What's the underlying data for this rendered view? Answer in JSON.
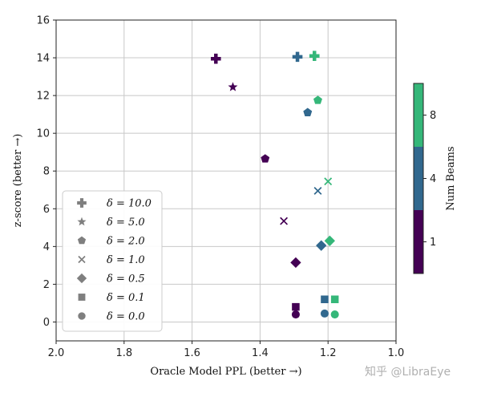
{
  "chart_data": {
    "type": "scatter",
    "xlabel": "Oracle Model PPL (better →)",
    "ylabel": "z-score (better →)",
    "xlim": [
      2.0,
      1.0
    ],
    "ylim": [
      -1,
      16
    ],
    "x_ticks": [
      "2.0",
      "1.8",
      "1.6",
      "1.4",
      "1.2",
      "1.0"
    ],
    "y_ticks": [
      "0",
      "2",
      "4",
      "6",
      "8",
      "10",
      "12",
      "14",
      "16"
    ],
    "grid": true,
    "legend_position": "lower-left",
    "legend": [
      {
        "marker": "plus",
        "label": "δ = 10.0"
      },
      {
        "marker": "star",
        "label": "δ = 5.0"
      },
      {
        "marker": "pentagon",
        "label": "δ = 2.0"
      },
      {
        "marker": "x",
        "label": "δ = 1.0"
      },
      {
        "marker": "diamond",
        "label": "δ = 0.5"
      },
      {
        "marker": "square",
        "label": "δ = 0.1"
      },
      {
        "marker": "circle",
        "label": "δ = 0.0"
      }
    ],
    "colorbar": {
      "label": "Num Beams",
      "ticks": [
        "1",
        "4",
        "8"
      ],
      "colors": {
        "1": "#440154",
        "4": "#31688e",
        "8": "#35b779"
      }
    },
    "points": [
      {
        "delta": 10.0,
        "marker": "plus",
        "beams": 1,
        "x": 1.53,
        "y": 13.95
      },
      {
        "delta": 10.0,
        "marker": "plus",
        "beams": 4,
        "x": 1.29,
        "y": 14.05
      },
      {
        "delta": 10.0,
        "marker": "plus",
        "beams": 8,
        "x": 1.24,
        "y": 14.1
      },
      {
        "delta": 5.0,
        "marker": "star",
        "beams": 1,
        "x": 1.48,
        "y": 12.45
      },
      {
        "delta": 2.0,
        "marker": "pentagon",
        "beams": 1,
        "x": 1.385,
        "y": 8.65
      },
      {
        "delta": 2.0,
        "marker": "pentagon",
        "beams": 4,
        "x": 1.26,
        "y": 11.1
      },
      {
        "delta": 2.0,
        "marker": "pentagon",
        "beams": 8,
        "x": 1.23,
        "y": 11.75
      },
      {
        "delta": 1.0,
        "marker": "x",
        "beams": 1,
        "x": 1.33,
        "y": 5.35
      },
      {
        "delta": 1.0,
        "marker": "x",
        "beams": 4,
        "x": 1.23,
        "y": 6.95
      },
      {
        "delta": 1.0,
        "marker": "x",
        "beams": 8,
        "x": 1.2,
        "y": 7.45
      },
      {
        "delta": 0.5,
        "marker": "diamond",
        "beams": 1,
        "x": 1.295,
        "y": 3.15
      },
      {
        "delta": 0.5,
        "marker": "diamond",
        "beams": 4,
        "x": 1.22,
        "y": 4.05
      },
      {
        "delta": 0.5,
        "marker": "diamond",
        "beams": 8,
        "x": 1.195,
        "y": 4.3
      },
      {
        "delta": 0.1,
        "marker": "square",
        "beams": 1,
        "x": 1.295,
        "y": 0.8
      },
      {
        "delta": 0.1,
        "marker": "square",
        "beams": 4,
        "x": 1.21,
        "y": 1.2
      },
      {
        "delta": 0.1,
        "marker": "square",
        "beams": 8,
        "x": 1.18,
        "y": 1.2
      },
      {
        "delta": 0.0,
        "marker": "circle",
        "beams": 1,
        "x": 1.295,
        "y": 0.4
      },
      {
        "delta": 0.0,
        "marker": "circle",
        "beams": 4,
        "x": 1.21,
        "y": 0.45
      },
      {
        "delta": 0.0,
        "marker": "circle",
        "beams": 8,
        "x": 1.18,
        "y": 0.4
      }
    ]
  },
  "watermark": "知乎 @LibraEye"
}
